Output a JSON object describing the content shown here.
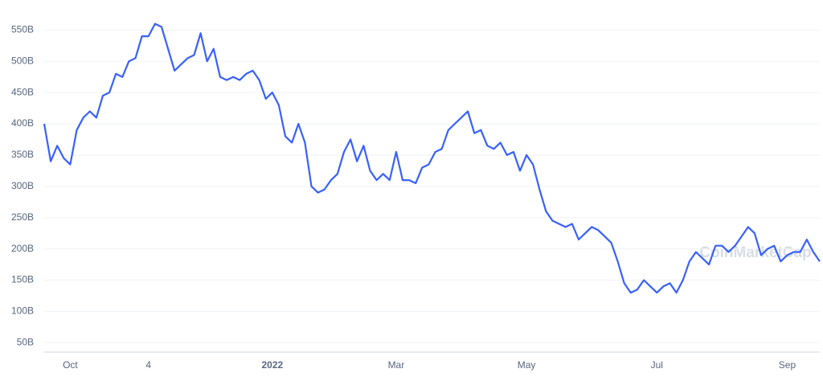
{
  "chart_data": {
    "type": "line",
    "watermark": "CoinMarketCap",
    "categories": [
      null,
      null,
      null,
      null,
      "Oct",
      null,
      null,
      null,
      null,
      null,
      null,
      null,
      null,
      null,
      null,
      null,
      "4",
      null,
      null,
      null,
      null,
      null,
      null,
      null,
      null,
      null,
      null,
      null,
      null,
      null,
      null,
      null,
      null,
      null,
      null,
      "2022",
      null,
      null,
      null,
      null,
      null,
      null,
      null,
      null,
      null,
      null,
      null,
      null,
      null,
      null,
      null,
      null,
      null,
      null,
      "Mar",
      null,
      null,
      null,
      null,
      null,
      null,
      null,
      null,
      null,
      null,
      null,
      null,
      null,
      null,
      null,
      null,
      null,
      null,
      null,
      "May",
      null,
      null,
      null,
      null,
      null,
      null,
      null,
      null,
      null,
      null,
      null,
      null,
      null,
      null,
      null,
      null,
      null,
      null,
      null,
      "Jul",
      null,
      null,
      null,
      null,
      null,
      null,
      null,
      null,
      null,
      null,
      null,
      null,
      null,
      null,
      null,
      null,
      null,
      null,
      null,
      "Sep",
      null,
      null,
      null,
      null,
      null
    ],
    "series": [
      {
        "color": "#3861fb",
        "values": [
          400,
          340,
          365,
          345,
          335,
          390,
          410,
          420,
          410,
          445,
          450,
          480,
          475,
          500,
          505,
          540,
          540,
          560,
          555,
          520,
          485,
          495,
          505,
          510,
          545,
          500,
          520,
          475,
          470,
          475,
          470,
          480,
          485,
          470,
          440,
          450,
          430,
          380,
          370,
          400,
          370,
          300,
          290,
          295,
          310,
          320,
          355,
          375,
          340,
          365,
          325,
          310,
          320,
          310,
          355,
          310,
          310,
          305,
          330,
          335,
          355,
          360,
          390,
          400,
          410,
          420,
          385,
          390,
          365,
          360,
          370,
          350,
          355,
          325,
          350,
          335,
          295,
          260,
          245,
          240,
          235,
          240,
          215,
          225,
          235,
          230,
          220,
          210,
          180,
          145,
          130,
          135,
          150,
          140,
          130,
          140,
          145,
          130,
          150,
          180,
          195,
          185,
          175,
          205,
          205,
          195,
          205,
          220,
          235,
          225,
          190,
          200,
          205,
          180,
          190,
          195,
          195,
          215,
          195,
          180
        ]
      }
    ],
    "ylim": [
      35,
      598
    ],
    "yticks": [
      {
        "value": 50,
        "label": "50B"
      },
      {
        "value": 100,
        "label": "100B"
      },
      {
        "value": 150,
        "label": "150B"
      },
      {
        "value": 200,
        "label": "200B"
      },
      {
        "value": 250,
        "label": "250B"
      },
      {
        "value": 300,
        "label": "300B"
      },
      {
        "value": 350,
        "label": "350B"
      },
      {
        "value": 400,
        "label": "400B"
      },
      {
        "value": 450,
        "label": "450B"
      },
      {
        "value": 500,
        "label": "500B"
      },
      {
        "value": 550,
        "label": "550B"
      }
    ],
    "grid": true
  }
}
